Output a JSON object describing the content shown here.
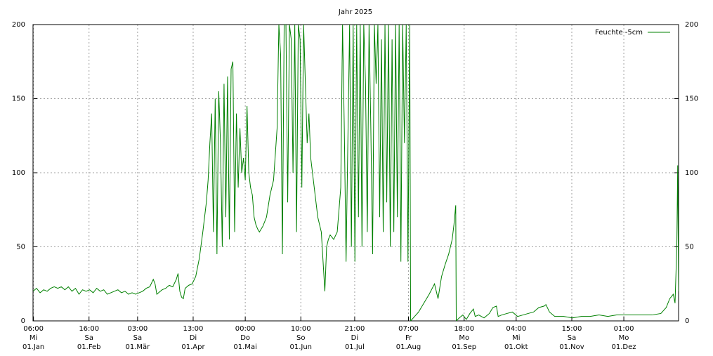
{
  "chart_data": {
    "type": "line",
    "title": "Jahr 2025",
    "x": [
      0,
      2,
      4,
      6,
      8,
      10,
      12,
      14,
      16,
      18,
      20,
      22,
      24,
      26,
      28,
      30,
      32,
      34,
      36,
      38,
      40,
      42,
      44,
      46,
      48,
      50,
      52,
      54,
      56,
      58,
      60,
      62,
      64,
      66,
      68,
      69,
      70,
      71,
      73,
      75,
      77,
      79,
      81,
      82,
      83,
      84,
      85,
      86,
      88,
      90,
      92,
      94,
      96,
      98,
      99,
      100,
      101,
      102,
      103,
      104,
      105,
      106,
      107,
      108,
      109,
      110,
      111,
      112,
      113,
      114,
      115,
      116,
      117,
      118,
      119,
      120,
      121,
      122,
      123,
      124,
      125,
      126,
      127,
      128,
      130,
      132,
      134,
      136,
      138,
      139,
      140,
      141,
      142,
      143,
      144,
      145,
      146,
      147,
      148,
      149,
      150,
      151,
      152,
      153,
      154,
      155,
      156,
      157,
      158,
      159,
      160,
      161,
      162,
      163,
      164,
      165,
      166,
      167,
      168,
      170,
      172,
      174,
      175,
      176,
      177,
      178,
      179,
      180,
      181,
      182,
      183,
      184,
      185,
      186,
      187,
      188,
      189,
      190,
      191,
      192,
      193,
      194,
      195,
      196,
      197,
      198,
      199,
      200,
      201,
      202,
      203,
      204,
      205,
      206,
      207,
      208,
      209,
      210,
      211,
      212,
      213,
      213.5,
      215,
      218,
      221,
      224,
      227,
      229,
      231,
      233,
      235,
      237,
      238,
      239,
      239.3,
      241,
      243,
      245,
      247,
      249,
      250,
      252,
      255,
      258,
      260,
      262,
      263,
      265,
      268,
      271,
      274,
      277,
      280,
      283,
      286,
      289,
      290,
      292,
      295,
      300,
      305,
      310,
      315,
      320,
      325,
      330,
      335,
      340,
      345,
      350,
      355,
      358,
      360,
      362,
      363,
      364,
      364.5,
      365
    ],
    "series": [
      {
        "name": "Feuchte -5cm",
        "color": "#008000",
        "values": [
          20,
          22,
          19,
          21,
          20,
          22,
          23,
          22,
          23,
          21,
          23,
          20,
          22,
          18,
          21,
          20,
          21,
          19,
          22,
          20,
          21,
          18,
          19,
          20,
          21,
          19,
          20,
          18,
          19,
          18,
          19,
          20,
          22,
          23,
          28,
          25,
          18,
          19,
          21,
          22,
          24,
          23,
          28,
          32,
          20,
          16,
          15,
          22,
          24,
          25,
          30,
          42,
          60,
          80,
          95,
          120,
          140,
          60,
          150,
          45,
          155,
          120,
          50,
          160,
          70,
          165,
          55,
          170,
          175,
          60,
          140,
          90,
          130,
          100,
          110,
          95,
          145,
          100,
          90,
          85,
          70,
          65,
          62,
          60,
          64,
          70,
          85,
          95,
          130,
          200,
          180,
          45,
          200,
          200,
          80,
          200,
          190,
          100,
          200,
          60,
          200,
          190,
          90,
          200,
          160,
          120,
          140,
          110,
          100,
          90,
          80,
          70,
          65,
          60,
          40,
          20,
          50,
          55,
          58,
          55,
          60,
          90,
          200,
          130,
          40,
          120,
          200,
          50,
          200,
          40,
          200,
          70,
          200,
          50,
          200,
          160,
          60,
          200,
          130,
          45,
          200,
          160,
          200,
          70,
          190,
          60,
          200,
          80,
          200,
          50,
          190,
          60,
          200,
          70,
          200,
          40,
          200,
          120,
          200,
          40,
          200,
          0,
          2,
          6,
          12,
          18,
          25,
          15,
          30,
          38,
          45,
          55,
          65,
          78,
          0,
          2,
          4,
          1,
          5,
          8,
          3,
          4,
          2,
          5,
          9,
          10,
          3,
          4,
          5,
          6,
          3,
          4,
          5,
          6,
          9,
          10,
          11,
          6,
          3,
          3,
          2,
          3,
          3,
          4,
          3,
          4,
          4,
          4,
          4,
          4,
          5,
          9,
          15,
          18,
          12,
          50,
          105,
          20
        ]
      }
    ],
    "xlim": [
      0,
      365
    ],
    "xticks": [
      {
        "value": 0.25,
        "label": [
          "06:00",
          "Mi",
          "01.Jan"
        ]
      },
      {
        "value": 31.667,
        "label": [
          "16:00",
          "Sa",
          "01.Feb"
        ]
      },
      {
        "value": 59.125,
        "label": [
          "03:00",
          "Sa",
          "01.Mär"
        ]
      },
      {
        "value": 90.542,
        "label": [
          "13:00",
          "Di",
          "01.Apr"
        ]
      },
      {
        "value": 120,
        "label": [
          "00:00",
          "Do",
          "01.Mai"
        ]
      },
      {
        "value": 151.417,
        "label": [
          "10:00",
          "So",
          "01.Jun"
        ]
      },
      {
        "value": 181.875,
        "label": [
          "21:00",
          "Di",
          "01.Jul"
        ]
      },
      {
        "value": 212.292,
        "label": [
          "07:00",
          "Fr",
          "01.Aug"
        ]
      },
      {
        "value": 243.75,
        "label": [
          "18:00",
          "Mo",
          "01.Sep"
        ]
      },
      {
        "value": 273.167,
        "label": [
          "04:00",
          "Mi",
          "01.Okt"
        ]
      },
      {
        "value": 304.625,
        "label": [
          "15:00",
          "Sa",
          "01.Nov"
        ]
      },
      {
        "value": 334.042,
        "label": [
          "01:00",
          "Mo",
          "01.Dez"
        ]
      }
    ],
    "ylim": [
      0,
      200
    ],
    "yticks": [
      0,
      50,
      100,
      150,
      200
    ],
    "y2lim": [
      0,
      200
    ],
    "y2ticks": [
      0,
      50,
      100,
      150,
      200
    ],
    "grid": true,
    "legend": "top-right"
  }
}
